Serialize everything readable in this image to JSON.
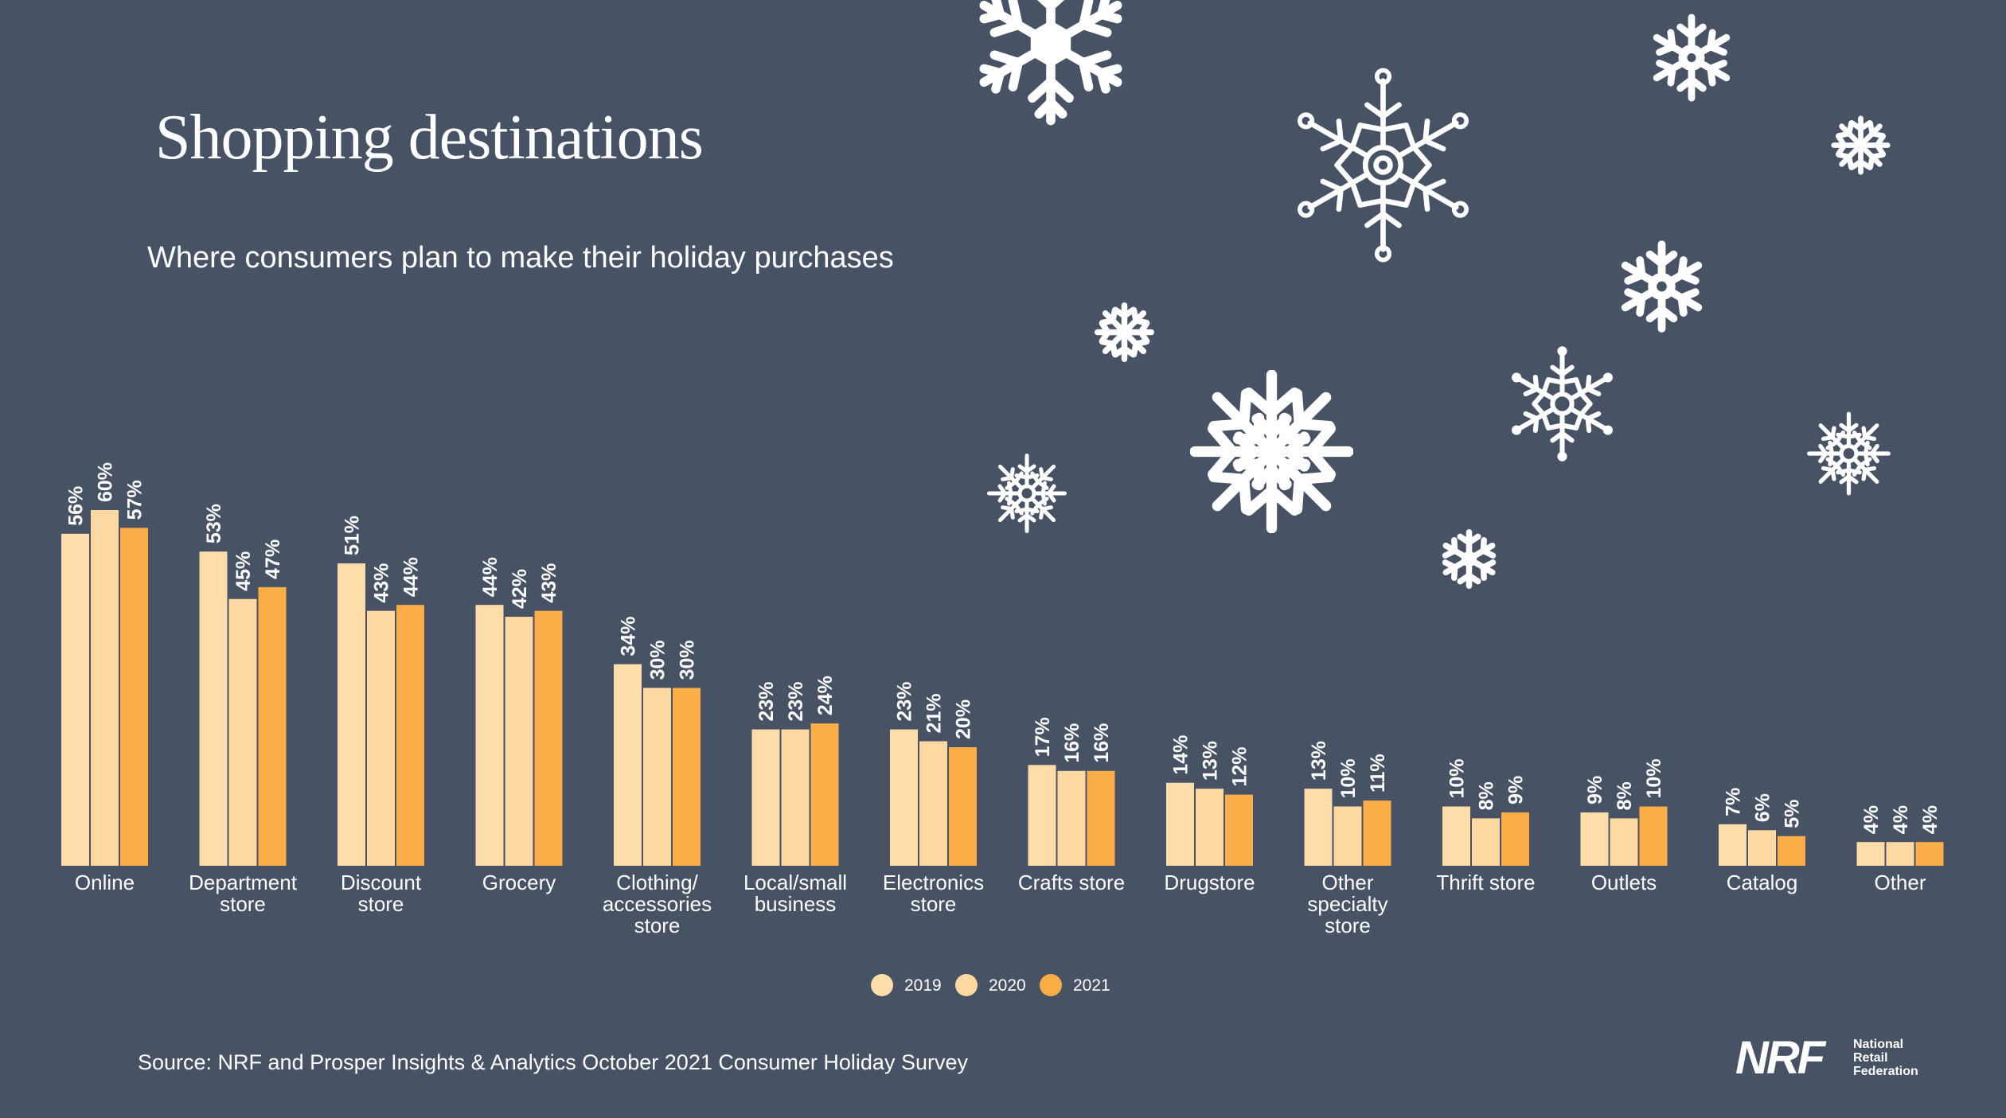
{
  "title": "Shopping destinations",
  "subtitle": "Where consumers plan to make their holiday purchases",
  "source": "Source: NRF and Prosper Insights & Analytics October 2021 Consumer Holiday Survey",
  "logo": {
    "mark": "NRF",
    "line1": "National",
    "line2": "Retail",
    "line3": "Federation"
  },
  "colors": {
    "background": "#475264",
    "s2019": "#FFDDAA",
    "s2020": "#FFD8A2",
    "s2021": "#FBAE48",
    "text": "#FFFFFF"
  },
  "chart_data": {
    "type": "bar",
    "title": "Shopping destinations",
    "subtitle": "Where consumers plan to make their holiday purchases",
    "xlabel": "",
    "ylabel": "",
    "ylim": [
      0,
      60
    ],
    "grid": false,
    "legend_position": "bottom-center",
    "categories": [
      [
        "Online"
      ],
      [
        "Department",
        "store"
      ],
      [
        "Discount",
        "store"
      ],
      [
        "Grocery"
      ],
      [
        "Clothing/",
        "accessories",
        "store"
      ],
      [
        "Local/small",
        "business"
      ],
      [
        "Electronics",
        "store"
      ],
      [
        "Crafts store"
      ],
      [
        "Drugstore"
      ],
      [
        "Other",
        "specialty",
        "store"
      ],
      [
        "Thrift store"
      ],
      [
        "Outlets"
      ],
      [
        "Catalog"
      ],
      [
        "Other"
      ]
    ],
    "series": [
      {
        "name": "2019",
        "color": "#FFDDAA",
        "values": [
          56,
          53,
          51,
          44,
          34,
          23,
          23,
          17,
          14,
          13,
          10,
          9,
          7,
          4
        ]
      },
      {
        "name": "2020",
        "color": "#FFD8A2",
        "values": [
          60,
          45,
          43,
          42,
          30,
          23,
          21,
          16,
          13,
          10,
          8,
          8,
          6,
          4
        ]
      },
      {
        "name": "2021",
        "color": "#FBAE48",
        "values": [
          57,
          47,
          44,
          43,
          30,
          24,
          20,
          16,
          12,
          11,
          9,
          10,
          5,
          4
        ]
      }
    ],
    "value_suffix": "%"
  }
}
